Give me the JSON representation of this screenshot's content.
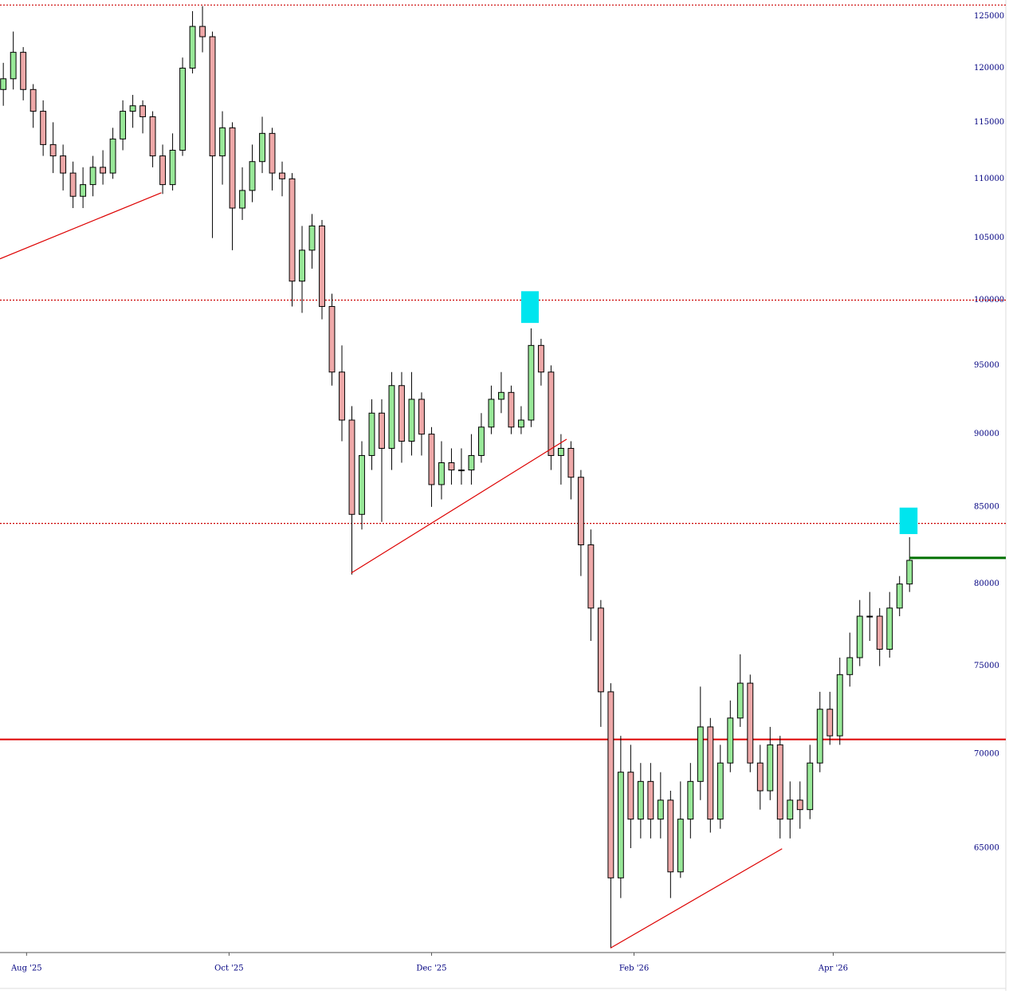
{
  "chart_data": {
    "type": "candlestick",
    "log_scale": true,
    "up_color": "#98e898",
    "down_color": "#eea8a8",
    "edge_color": "#000000",
    "x": [
      1,
      4,
      7,
      10,
      13,
      16,
      19,
      22,
      25,
      28,
      31,
      34,
      37,
      40,
      43,
      46,
      49,
      52,
      55,
      58,
      61,
      64,
      67,
      70,
      73,
      76,
      79,
      82,
      85,
      88,
      91,
      94,
      97,
      100,
      103,
      106,
      109,
      112,
      115,
      118,
      121,
      124,
      127,
      130,
      133,
      136,
      139,
      142,
      145,
      148,
      151,
      154,
      157,
      160,
      163,
      166,
      169,
      172,
      175,
      178,
      181,
      184,
      187,
      190,
      193,
      196,
      199,
      202,
      205,
      208,
      211,
      214,
      217,
      220,
      223,
      226,
      229,
      232,
      235,
      238,
      241,
      244,
      247,
      250,
      253,
      256,
      259,
      262,
      265,
      268,
      271,
      274
    ],
    "open": [
      118000,
      119000,
      121500,
      118000,
      116000,
      113000,
      112000,
      110500,
      108500,
      109500,
      111000,
      110500,
      113500,
      116000,
      116500,
      115500,
      112000,
      109500,
      112500,
      120000,
      124000,
      123000,
      112000,
      114500,
      107500,
      109000,
      111500,
      114000,
      110500,
      110000,
      101500,
      104000,
      106000,
      99500,
      94500,
      91000,
      84500,
      88500,
      91500,
      89000,
      93500,
      89500,
      92500,
      90000,
      86500,
      88000,
      87500,
      87500,
      88500,
      90500,
      92500,
      93000,
      90500,
      91000,
      96500,
      94500,
      88500,
      89000,
      87000,
      82500,
      78500,
      73500,
      63500,
      69000,
      66500,
      68500,
      66500,
      67500,
      63800,
      66500,
      68500,
      71500,
      66500,
      69500,
      72000,
      74000,
      69500,
      68000,
      70500,
      66500,
      67500,
      67000,
      69500,
      72500,
      71000,
      74500,
      75500,
      78000,
      78000,
      76000,
      78500,
      80000
    ],
    "high": [
      120500,
      123500,
      122000,
      118500,
      117000,
      115000,
      113000,
      111500,
      111000,
      112000,
      112500,
      114500,
      117000,
      117500,
      117000,
      116000,
      113000,
      114000,
      121000,
      125500,
      126000,
      123500,
      116000,
      115000,
      111000,
      113000,
      115500,
      114500,
      111500,
      110500,
      106000,
      107000,
      106500,
      100500,
      96500,
      92000,
      89500,
      92500,
      92500,
      94500,
      94500,
      94500,
      93000,
      90500,
      89500,
      89000,
      89000,
      90000,
      91500,
      93500,
      94500,
      93500,
      92000,
      97800,
      97000,
      95000,
      90000,
      89500,
      87500,
      83500,
      79000,
      74000,
      71000,
      70500,
      69500,
      69500,
      69000,
      68000,
      68500,
      69500,
      73800,
      72000,
      70500,
      73000,
      75700,
      74500,
      70500,
      71500,
      71000,
      68500,
      68500,
      70500,
      73500,
      73500,
      75500,
      77000,
      79000,
      79500,
      78500,
      79500,
      80500,
      83000
    ],
    "low": [
      116500,
      118000,
      117000,
      114500,
      112000,
      110500,
      109000,
      107500,
      107500,
      108500,
      109500,
      110000,
      112500,
      114500,
      114000,
      111000,
      108700,
      109000,
      112000,
      119500,
      121500,
      105000,
      109500,
      104000,
      106500,
      108000,
      110500,
      109000,
      108500,
      99500,
      99000,
      102500,
      98500,
      93500,
      89500,
      80600,
      83500,
      87500,
      84000,
      87500,
      88000,
      88500,
      88500,
      85000,
      85500,
      86500,
      86500,
      86500,
      88000,
      90000,
      91500,
      90000,
      90000,
      90500,
      93500,
      87500,
      86500,
      85500,
      80500,
      76500,
      71500,
      60100,
      62500,
      65000,
      65500,
      65500,
      65500,
      62500,
      63500,
      65500,
      67500,
      65800,
      66000,
      69000,
      71500,
      69000,
      67000,
      67500,
      65500,
      65500,
      66000,
      66500,
      69000,
      70500,
      70500,
      73800,
      75000,
      76500,
      75000,
      75500,
      78000,
      79500
    ],
    "close": [
      119000,
      121500,
      118000,
      116000,
      113000,
      112000,
      110500,
      108500,
      109500,
      111000,
      110500,
      113500,
      116000,
      116500,
      115500,
      112000,
      109500,
      112500,
      120000,
      124000,
      123000,
      112000,
      114500,
      107500,
      109000,
      111500,
      114000,
      110500,
      110000,
      101500,
      104000,
      106000,
      99500,
      94500,
      91000,
      84500,
      88500,
      91500,
      89000,
      93500,
      89500,
      92500,
      90000,
      86500,
      88000,
      87500,
      87500,
      88500,
      90500,
      92500,
      93000,
      90500,
      91000,
      96500,
      94500,
      88500,
      89000,
      87000,
      82500,
      78500,
      73500,
      63500,
      69000,
      66500,
      68500,
      66500,
      67500,
      63800,
      66500,
      68500,
      71500,
      66500,
      69500,
      72000,
      74000,
      69500,
      68000,
      70500,
      66500,
      67500,
      67000,
      69500,
      72500,
      71000,
      74500,
      75500,
      78000,
      78000,
      76000,
      78500,
      80000,
      81500
    ],
    "xlim": [
      0,
      303
    ],
    "ylim": [
      59880,
      126600
    ],
    "xticks": [
      {
        "value": 8,
        "label": "Aug '25"
      },
      {
        "value": 69,
        "label": "Oct '25"
      },
      {
        "value": 130,
        "label": "Dec '25"
      },
      {
        "value": 191,
        "label": "Feb '26"
      },
      {
        "value": 251,
        "label": "Apr '26"
      }
    ],
    "yticks": [
      65000,
      70000,
      75000,
      80000,
      85000,
      90000,
      95000,
      100000,
      105000,
      110000,
      115000,
      120000,
      125000
    ],
    "hlines": [
      {
        "value": 126100,
        "color": "#cc0000",
        "style": "dotted"
      },
      {
        "value": 100000,
        "color": "#cc0000",
        "style": "dotted"
      },
      {
        "value": 83900,
        "color": "#cc0000",
        "style": "dotted"
      },
      {
        "value": 70800,
        "color": "#dd0000",
        "style": "solid"
      }
    ],
    "segments": [
      {
        "x": [
          0,
          48.6
        ],
        "y": [
          103300,
          108800
        ],
        "color": "#dd0000"
      },
      {
        "x": [
          105.8,
          170.7
        ],
        "y": [
          80690,
          89640
        ],
        "color": "#dd0000"
      },
      {
        "x": [
          183.9,
          235.6
        ],
        "y": [
          60090,
          64970
        ],
        "color": "#dd0000"
      },
      {
        "x": [
          274,
          303
        ],
        "y": [
          81660,
          81660
        ],
        "color": "#007000"
      }
    ],
    "boxes": [
      {
        "x": [
          157,
          162.3
        ],
        "y": [
          98220,
          100700
        ],
        "color": "#00e5ee"
      },
      {
        "x": [
          271,
          276.4
        ],
        "y": [
          83200,
          84950
        ],
        "color": "#00e5ee"
      }
    ]
  }
}
